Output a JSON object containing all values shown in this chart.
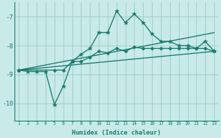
{
  "xlabel": "Humidex (Indice chaleur)",
  "bg_color": "#c8eae8",
  "grid_color": "#9ecfca",
  "line_color": "#1a7a6e",
  "xlim": [
    0.5,
    23.5
  ],
  "ylim": [
    -10.6,
    -6.5
  ],
  "yticks": [
    -10,
    -9,
    -8,
    -7
  ],
  "xticks": [
    1,
    2,
    3,
    4,
    5,
    6,
    7,
    8,
    9,
    10,
    11,
    12,
    13,
    14,
    15,
    16,
    17,
    18,
    19,
    20,
    21,
    22,
    23
  ],
  "series": [
    {
      "x": [
        1,
        2,
        3,
        4,
        5,
        6,
        7,
        8,
        9,
        10,
        11,
        12,
        13,
        14,
        15,
        16,
        17,
        18,
        19,
        20,
        21,
        22,
        23
      ],
      "y": [
        -8.85,
        -8.9,
        -8.9,
        -8.9,
        -10.05,
        -9.4,
        -8.55,
        -8.3,
        -8.1,
        -7.55,
        -7.55,
        -6.8,
        -7.2,
        -6.9,
        -7.2,
        -7.6,
        -7.85,
        -7.85,
        -8.0,
        -8.0,
        -8.1,
        -7.85,
        -8.2
      ],
      "marker": "*",
      "ms": 4,
      "lw": 1.0
    },
    {
      "x": [
        1,
        23
      ],
      "y": [
        -8.85,
        -7.55
      ],
      "marker": null,
      "ms": 0,
      "lw": 1.0
    },
    {
      "x": [
        1,
        5,
        6,
        7,
        8,
        9,
        10,
        11,
        12,
        13,
        14,
        15,
        16,
        17,
        18,
        19,
        20,
        21,
        22,
        23
      ],
      "y": [
        -8.85,
        -8.85,
        -8.85,
        -8.55,
        -8.55,
        -8.4,
        -8.2,
        -8.25,
        -8.1,
        -8.2,
        -8.05,
        -8.1,
        -8.1,
        -8.1,
        -8.1,
        -8.1,
        -8.1,
        -8.1,
        -8.1,
        -8.2
      ],
      "marker": "D",
      "ms": 2.5,
      "lw": 1.0
    },
    {
      "x": [
        1,
        23
      ],
      "y": [
        -8.85,
        -8.2
      ],
      "marker": null,
      "ms": 0,
      "lw": 1.0
    }
  ]
}
